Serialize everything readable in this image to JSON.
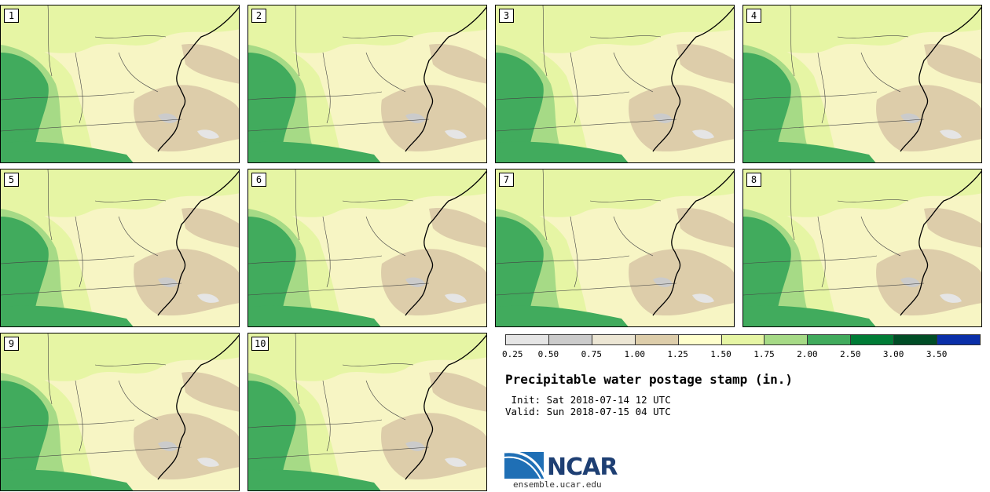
{
  "panels": [
    {
      "label": "1"
    },
    {
      "label": "2"
    },
    {
      "label": "3"
    },
    {
      "label": "4"
    },
    {
      "label": "5"
    },
    {
      "label": "6"
    },
    {
      "label": "7"
    },
    {
      "label": "8"
    },
    {
      "label": "9"
    },
    {
      "label": "10"
    }
  ],
  "legend": {
    "colors": [
      "#e5e5e5",
      "#cbcbcb",
      "#ece6d4",
      "#ddcdaa",
      "#ffffcc",
      "#e6f5a4",
      "#a6da86",
      "#41ab5d",
      "#007c36",
      "#004d26",
      "#0a2fa8"
    ],
    "ticks": [
      "0.25",
      "0.50",
      "0.75",
      "1.00",
      "1.25",
      "1.50",
      "1.75",
      "2.00",
      "2.50",
      "3.00",
      "3.50"
    ]
  },
  "title": "Precipitable water postage stamp (in.)",
  "init_line": " Init: Sat 2018-07-14 12 UTC",
  "valid_line": "Valid: Sun 2018-07-15 04 UTC",
  "logo": {
    "name": "NCAR",
    "url": "ensemble.ucar.edu"
  }
}
